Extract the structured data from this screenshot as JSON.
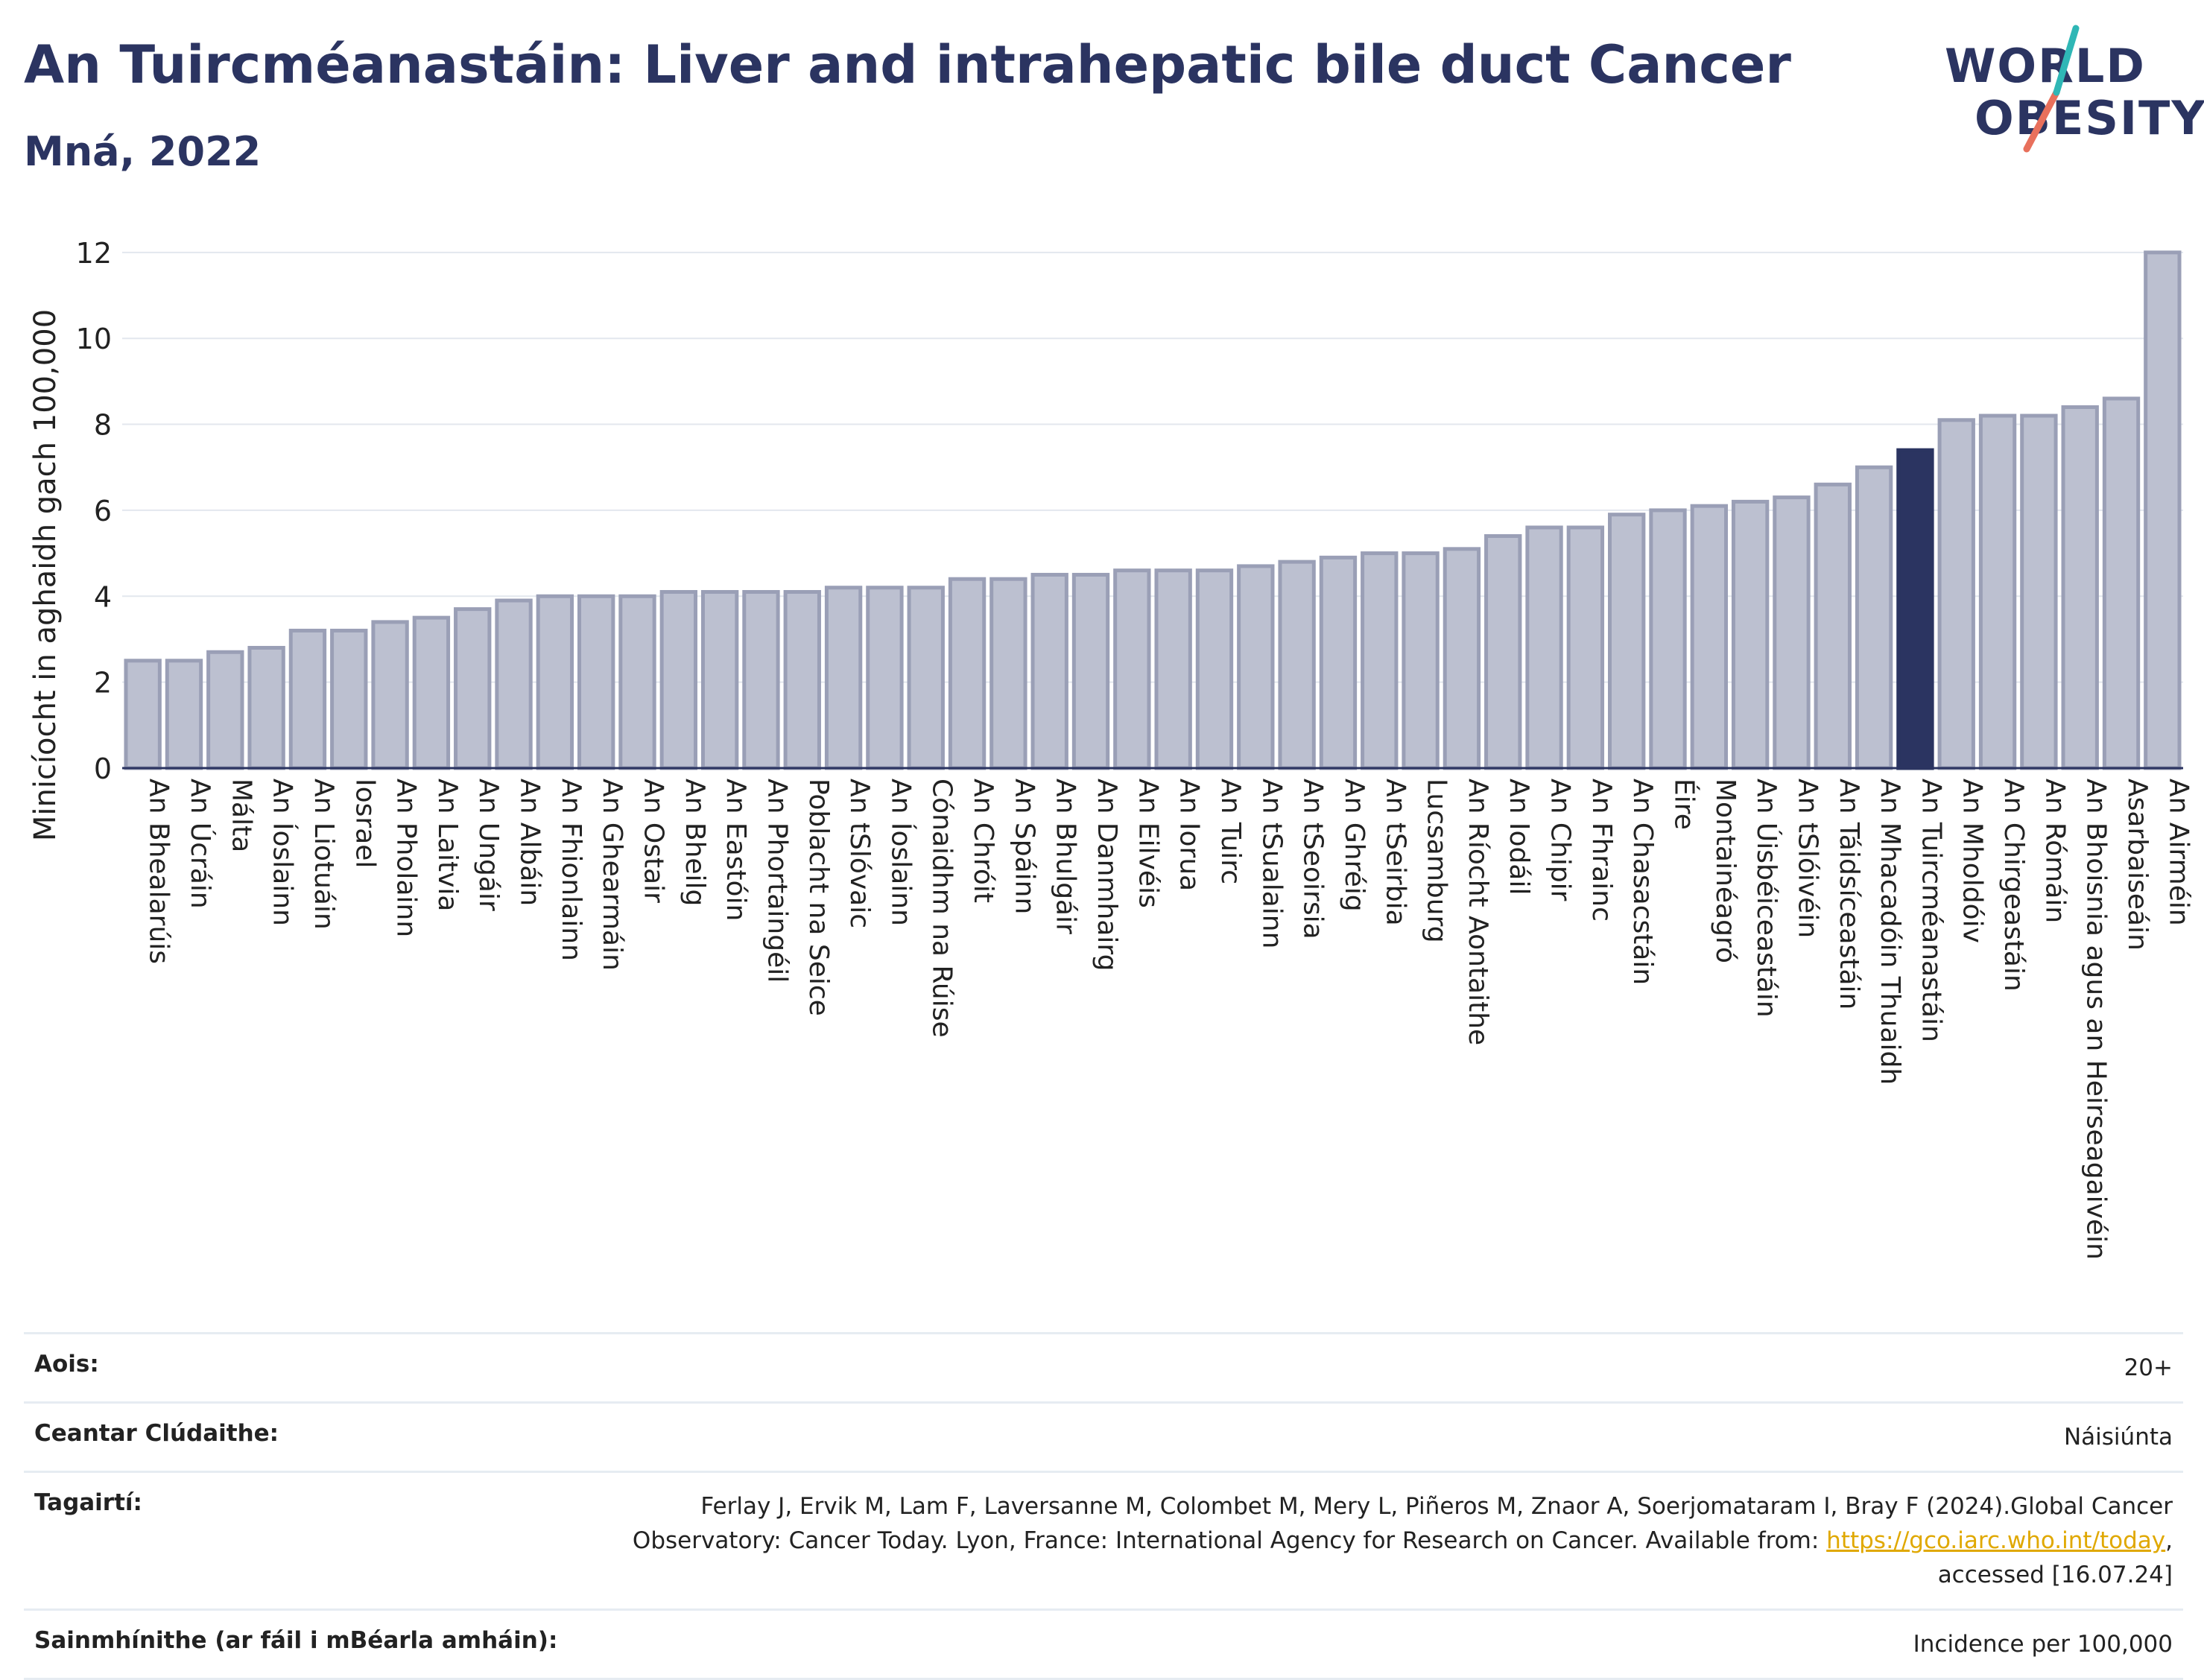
{
  "header": {
    "title": "An Tuircméanastáin: Liver and intrahepatic bile duct Cancer",
    "subtitle": "Mná, 2022"
  },
  "logo": {
    "line1": "WORLD",
    "line2": "OBESITY",
    "slash_teal": "#2fb7b6",
    "slash_coral": "#e8705c"
  },
  "colors": {
    "bar": "#bcc0d0",
    "bar_border": "#9a9fb6",
    "highlight": "#2b3461",
    "axis": "#2b3461",
    "grid": "#e3e7ee"
  },
  "chart_data": {
    "type": "bar",
    "title": "An Tuircméanastáin: Liver and intrahepatic bile duct Cancer",
    "subtitle": "Mná, 2022",
    "xlabel": "",
    "ylabel": "Minicíocht in aghaidh gach 100,000",
    "ylim": [
      0,
      12.5
    ],
    "yticks": [
      0,
      2,
      4,
      6,
      8,
      10,
      12
    ],
    "grid": true,
    "highlight": "An Tuircméanastáin",
    "categories": [
      "An Bhealarúis",
      "An Úcráin",
      "Málta",
      "An Íoslainn",
      "An Liotuáin",
      "Iosrael",
      "An Pholainn",
      "An Laitvia",
      "An Ungáir",
      "An Albáin",
      "An Fhionlainn",
      "An Ghearmáin",
      "An Ostair",
      "An Bheilg",
      "An Eastóin",
      "An Phortaingéil",
      "Poblacht na Seice",
      "An tSlóvaic",
      "An Íoslainn",
      "Cónaidhm na Rúise",
      "An Chróit",
      "An Spáinn",
      "An Bhulgáir",
      "An Danmhairg",
      "An Eilvéis",
      "An Iorua",
      "An Tuirc",
      "An tSualainn",
      "An tSeoirsia",
      "An Ghréig",
      "An tSeirbia",
      "Lucsamburg",
      "An Ríocht Aontaithe",
      "An Iodáil",
      "An Chipir",
      "An Fhrainc",
      "An Chasacstáin",
      "Éire",
      "Montainéagró",
      "An Úisbéiceastáin",
      "An tSlóivéin",
      "An Táidsíceastáin",
      "An Mhacadóin Thuaidh",
      "An Tuircméanastáin",
      "An Mholdóiv",
      "An Chirgeastáin",
      "An Rómáin",
      "An Bhoisnia agus an Heirseagaivéin",
      "Asarbaiseáin",
      "An Airméin"
    ],
    "values": [
      2.5,
      2.5,
      2.7,
      2.8,
      3.2,
      3.2,
      3.4,
      3.5,
      3.7,
      3.9,
      4.0,
      4.0,
      4.0,
      4.1,
      4.1,
      4.1,
      4.1,
      4.2,
      4.2,
      4.2,
      4.4,
      4.4,
      4.5,
      4.5,
      4.6,
      4.6,
      4.6,
      4.7,
      4.8,
      4.9,
      5.0,
      5.0,
      5.1,
      5.4,
      5.6,
      5.6,
      5.9,
      6.0,
      6.1,
      6.2,
      6.3,
      6.6,
      7.0,
      7.4,
      8.1,
      8.2,
      8.2,
      8.4,
      8.6,
      12.0
    ]
  },
  "info": {
    "age_label": "Aois:",
    "age_value": "20+",
    "area_label": "Ceantar Clúdaithe:",
    "area_value": "Náisiúnta",
    "ref_label": "Tagairtí:",
    "ref_text_1": "Ferlay J, Ervik M, Lam F, Laversanne M, Colombet M, Mery L, Piñeros M, Znaor A, Soerjomataram I, Bray F (2024).Global Cancer Observatory: Cancer Today. Lyon, France: International Agency for Research on Cancer. Available from: ",
    "ref_link": "https://gco.iarc.who.int/today",
    "ref_text_2": ", accessed [16.07.24]",
    "def_label": "Sainmhínithe (ar fáil i mBéarla amháin):",
    "def_value": "Incidence per 100,000"
  }
}
